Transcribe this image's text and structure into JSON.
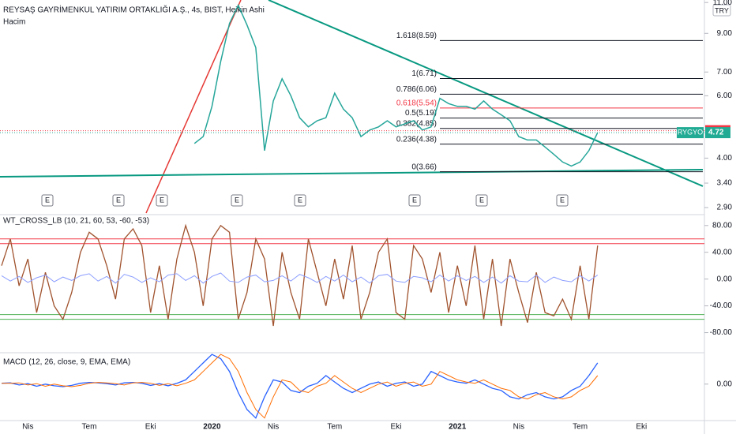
{
  "header": {
    "title": "REYSAŞ GAYRİMENKUL YATIRIM ORTAKLIĞI A.Ş., 4s, BIST, Heikin Ashi",
    "volume_label": "Hacim",
    "currency": "TRY"
  },
  "chart_data": [
    {
      "type": "line",
      "log_scale": true,
      "color": "#26a69a",
      "values": [
        null,
        null,
        null,
        null,
        null,
        null,
        null,
        null,
        null,
        null,
        null,
        null,
        null,
        null,
        null,
        null,
        null,
        null,
        null,
        null,
        null,
        null,
        4.4,
        4.6,
        5.6,
        7.5,
        9.6,
        10.8,
        9.5,
        8.2,
        4.2,
        5.8,
        6.7,
        6.0,
        5.2,
        4.9,
        5.1,
        5.2,
        6.1,
        5.5,
        5.2,
        4.6,
        4.8,
        4.9,
        5.1,
        4.9,
        5.0,
        5.1,
        4.8,
        4.9,
        5.9,
        5.7,
        5.6,
        5.6,
        5.5,
        5.8,
        5.5,
        5.3,
        5.1,
        4.6,
        4.5,
        4.5,
        4.3,
        4.1,
        3.9,
        3.8,
        3.9,
        4.2,
        4.72,
        null,
        null,
        null,
        null,
        null
      ],
      "ylim": [
        2.77,
        11.18
      ],
      "yticks": [
        {
          "value": 11,
          "label": "11.00"
        },
        {
          "value": 9,
          "label": "9.00"
        },
        {
          "value": 7,
          "label": "7.00"
        },
        {
          "value": 6,
          "label": "6.00"
        },
        {
          "value": 4,
          "label": "4.00"
        },
        {
          "value": 3.4,
          "label": "3.40"
        },
        {
          "value": 2.9,
          "label": "2.90"
        }
      ],
      "fib_levels": [
        {
          "label": "1.618(8.59)",
          "value": 8.59,
          "color": "#131722"
        },
        {
          "label": "1(6.71)",
          "value": 6.71,
          "color": "#131722"
        },
        {
          "label": "0.786(6.06)",
          "value": 6.06,
          "color": "#131722"
        },
        {
          "label": "0.618(5.54)",
          "value": 5.54,
          "color": "#f23645"
        },
        {
          "label": "0.5(5.19)",
          "value": 5.19,
          "color": "#131722"
        },
        {
          "label": "0.382(4.85)",
          "value": 4.85,
          "color": "#131722"
        },
        {
          "label": "0.236(4.38)",
          "value": 4.38,
          "color": "#131722"
        },
        {
          "label": "0(3.66)",
          "value": 3.66,
          "color": "#131722"
        }
      ],
      "price_tags": [
        {
          "value": 4.78,
          "color": "#f23645"
        },
        {
          "name": "RYGYO",
          "value": 4.72,
          "color": "#22ab94"
        }
      ],
      "earnings": [
        "E",
        "E",
        "E",
        "E",
        "E",
        "E",
        "E",
        "E"
      ]
    },
    {
      "type": "line",
      "title": "WT_CROSS_LB (10, 21, 60, 53, -60, -53)",
      "series": [
        {
          "color": "#a0522d",
          "values": [
            20,
            60,
            -10,
            30,
            -50,
            10,
            -40,
            -60,
            -20,
            40,
            70,
            60,
            20,
            -30,
            60,
            75,
            50,
            -50,
            20,
            -60,
            30,
            80,
            40,
            -40,
            60,
            80,
            70,
            -60,
            -20,
            60,
            30,
            -70,
            40,
            -20,
            -60,
            60,
            10,
            -40,
            30,
            -30,
            50,
            -60,
            -20,
            40,
            60,
            -50,
            -60,
            50,
            30,
            -20,
            40,
            -50,
            20,
            -40,
            50,
            -60,
            30,
            -70,
            30,
            -20,
            -65,
            10,
            -50,
            -55,
            -30,
            -60,
            20,
            -60,
            50,
            null,
            null,
            null,
            null,
            null
          ]
        },
        {
          "color": "#8c9eff",
          "values": [
            5,
            -3,
            4,
            -5,
            2,
            6,
            -4,
            3,
            -2,
            5,
            8,
            -3,
            4,
            -6,
            7,
            3,
            -5,
            2,
            -4,
            6,
            8,
            -2,
            5,
            -6,
            4,
            9,
            -3,
            -5,
            3,
            6,
            -4,
            -2,
            5,
            -3,
            7,
            2,
            -5,
            4,
            -3,
            6,
            -4,
            3,
            -6,
            5,
            7,
            -3,
            -5,
            4,
            2,
            -4,
            6,
            -3,
            5,
            -2,
            4,
            -5,
            3,
            -6,
            5,
            -3,
            -4,
            6,
            -5,
            3,
            -2,
            -4,
            5,
            -3,
            6,
            null,
            null,
            null,
            null,
            null
          ]
        }
      ],
      "levels": [
        {
          "value": 60,
          "color": "#f23645"
        },
        {
          "value": 53,
          "color": "#f23645"
        },
        {
          "value": -53,
          "color": "#4caf50"
        },
        {
          "value": -60,
          "color": "#4caf50"
        }
      ],
      "ylim": [
        -110,
        96.25
      ],
      "yticks": [
        {
          "value": 80,
          "label": "80.00"
        },
        {
          "value": 40,
          "label": "40.00"
        },
        {
          "value": 0,
          "label": "0.00"
        },
        {
          "value": -40,
          "label": "-40.00"
        },
        {
          "value": -80,
          "label": "-80.00"
        }
      ]
    },
    {
      "type": "line",
      "title": "MACD (12, 26, close, 9, EMA, EMA)",
      "categories": [
        null,
        null,
        null,
        "Nis",
        null,
        null,
        null,
        null,
        null,
        null,
        "Tem",
        null,
        null,
        null,
        null,
        null,
        null,
        "Eki",
        null,
        null,
        null,
        null,
        null,
        null,
        "2020",
        null,
        null,
        null,
        null,
        null,
        null,
        "Nis",
        null,
        null,
        null,
        null,
        null,
        null,
        "Tem",
        null,
        null,
        null,
        null,
        null,
        null,
        "Eki",
        null,
        null,
        null,
        null,
        null,
        null,
        "2021",
        null,
        null,
        null,
        null,
        null,
        null,
        "Nis",
        null,
        null,
        null,
        null,
        null,
        null,
        "Tem",
        null,
        null,
        null,
        null,
        null,
        null,
        "Eki"
      ],
      "series": [
        {
          "color": "#2962ff",
          "values": [
            0.02,
            0.03,
            -0.02,
            0.01,
            -0.05,
            0,
            -0.04,
            -0.06,
            -0.03,
            0.02,
            0.04,
            0.03,
            0.01,
            -0.02,
            0.03,
            0.04,
            0.02,
            -0.03,
            0.01,
            -0.04,
            0.02,
            0.1,
            0.3,
            0.5,
            0.7,
            0.6,
            0.3,
            -0.2,
            -0.6,
            -0.8,
            -0.3,
            0.1,
            0.05,
            -0.15,
            -0.2,
            -0.05,
            0.02,
            0.2,
            0.05,
            -0.1,
            -0.2,
            -0.1,
            0,
            0.05,
            -0.05,
            0.02,
            0.05,
            -0.05,
            0,
            0.3,
            0.2,
            0.1,
            0.05,
            0.02,
            0.1,
            0,
            -0.1,
            -0.15,
            -0.3,
            -0.35,
            -0.25,
            -0.2,
            -0.3,
            -0.35,
            -0.3,
            -0.15,
            -0.05,
            0.2,
            0.5,
            null,
            null,
            null,
            null,
            null
          ]
        },
        {
          "color": "#ff6d00",
          "values": [
            0.02,
            0.02,
            0.03,
            -0.02,
            0.01,
            -0.05,
            0,
            -0.04,
            -0.06,
            -0.03,
            0.02,
            0.04,
            0.03,
            0.01,
            -0.02,
            0.03,
            0.04,
            0.02,
            -0.03,
            0.01,
            -0.04,
            0.02,
            0.1,
            0.3,
            0.5,
            0.7,
            0.6,
            0.3,
            -0.2,
            -0.6,
            -0.8,
            -0.3,
            0.1,
            0.05,
            -0.15,
            -0.2,
            -0.05,
            0.02,
            0.2,
            0.05,
            -0.1,
            -0.2,
            -0.1,
            0,
            0.05,
            -0.05,
            0.02,
            0.05,
            -0.05,
            0,
            0.3,
            0.2,
            0.1,
            0.05,
            0.02,
            0.1,
            0,
            -0.1,
            -0.15,
            -0.3,
            -0.35,
            -0.25,
            -0.2,
            -0.3,
            -0.35,
            -0.3,
            -0.15,
            -0.05,
            0.2,
            null,
            null,
            null,
            null,
            null
          ]
        }
      ],
      "ylim": [
        -0.86,
        0.74
      ],
      "yticks": [
        {
          "value": 0,
          "label": "0.00"
        }
      ]
    }
  ]
}
